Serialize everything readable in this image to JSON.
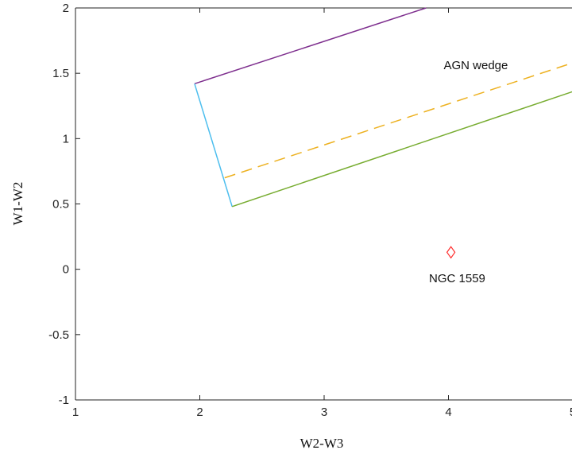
{
  "chart_data": {
    "type": "line",
    "title": "",
    "xlabel": "W2-W3",
    "ylabel": "W1-W2",
    "xlim": [
      1,
      5
    ],
    "ylim": [
      -1,
      2
    ],
    "x_ticks": [
      1,
      2,
      3,
      4,
      5
    ],
    "y_ticks": [
      -1,
      -0.5,
      0,
      0.5,
      1,
      1.5,
      2
    ],
    "x_tick_labels": [
      "1",
      "2",
      "3",
      "4",
      "5"
    ],
    "y_tick_labels": [
      "-1",
      "-0.5",
      "0",
      "0.5",
      "1",
      "1.5",
      "2"
    ],
    "grid": false,
    "lines": [
      {
        "color": "#7e2f8e",
        "style": "solid",
        "x": [
          1.958,
          3.82
        ],
        "y": [
          1.42,
          2.0
        ]
      },
      {
        "color": "#4dbeee",
        "style": "solid",
        "x": [
          1.958,
          2.26
        ],
        "y": [
          1.42,
          0.48
        ]
      },
      {
        "color": "#77ac30",
        "style": "solid",
        "x": [
          2.26,
          5.0
        ],
        "y": [
          0.48,
          1.36
        ]
      },
      {
        "color": "#edb120",
        "style": "dashed",
        "x": [
          2.2,
          5.0
        ],
        "y": [
          0.7,
          1.58
        ]
      }
    ],
    "points": [
      {
        "x": 4.02,
        "y": 0.13,
        "marker": "diamond",
        "color": "#ff2a2a"
      }
    ],
    "annotations": [
      {
        "text": "AGN wedge",
        "x": 4.22,
        "y": 1.53
      },
      {
        "text": "NGC 1559",
        "x": 4.07,
        "y": -0.1
      }
    ]
  }
}
